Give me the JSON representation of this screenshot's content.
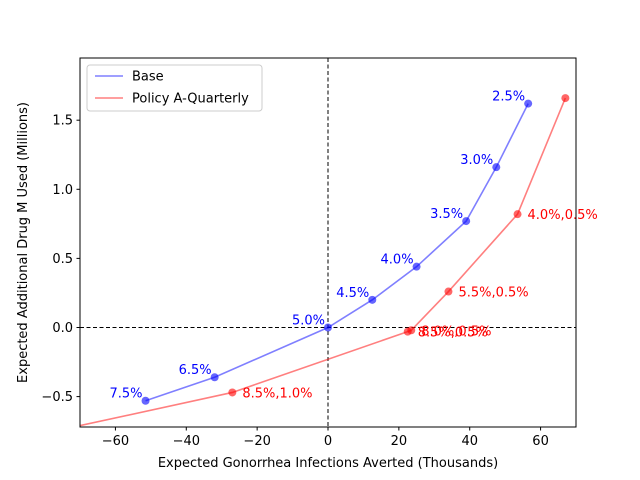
{
  "chart_data": {
    "type": "scatter",
    "xlabel": "Expected Gonorrhea Infections Averted (Thousands)",
    "ylabel": "Expected Additional Drug M Used (Millions)",
    "xlim": [
      -70,
      70
    ],
    "ylim": [
      -0.72,
      1.95
    ],
    "xticks": [
      -60,
      -40,
      -20,
      0,
      20,
      40,
      60
    ],
    "yticks": [
      -0.5,
      0.0,
      0.5,
      1.0,
      1.5
    ],
    "reference_lines": {
      "x": 0,
      "y": 0
    },
    "legend": {
      "location": "top-left"
    },
    "series": [
      {
        "name": "Base",
        "color": "#0000ff",
        "points": [
          {
            "x": 56.5,
            "y": 1.62,
            "label": "2.5%"
          },
          {
            "x": 47.5,
            "y": 1.16,
            "label": "3.0%"
          },
          {
            "x": 39.0,
            "y": 0.77,
            "label": "3.5%"
          },
          {
            "x": 25.0,
            "y": 0.44,
            "label": "4.0%"
          },
          {
            "x": 12.5,
            "y": 0.2,
            "label": "4.5%"
          },
          {
            "x": 0.0,
            "y": 0.0,
            "label": "5.0%"
          },
          {
            "x": -32.0,
            "y": -0.36,
            "label": "6.5%"
          },
          {
            "x": -51.5,
            "y": -0.53,
            "label": "7.5%"
          }
        ]
      },
      {
        "name": "Policy A-Quarterly",
        "color": "#ff0000",
        "line_start": {
          "x": -70.0,
          "y": -0.71
        },
        "points": [
          {
            "x": 67.0,
            "y": 1.66,
            "label": ""
          },
          {
            "x": 53.5,
            "y": 0.82,
            "label": "4.0%,0.5%"
          },
          {
            "x": 34.0,
            "y": 0.26,
            "label": "5.5%,0.5%"
          },
          {
            "x": 23.5,
            "y": -0.02,
            "label": "8.0%,0.5%"
          },
          {
            "x": 22.5,
            "y": -0.03,
            "label": "8.5%,0.5%"
          },
          {
            "x": -27.0,
            "y": -0.47,
            "label": "8.5%,1.0%"
          }
        ]
      }
    ]
  }
}
